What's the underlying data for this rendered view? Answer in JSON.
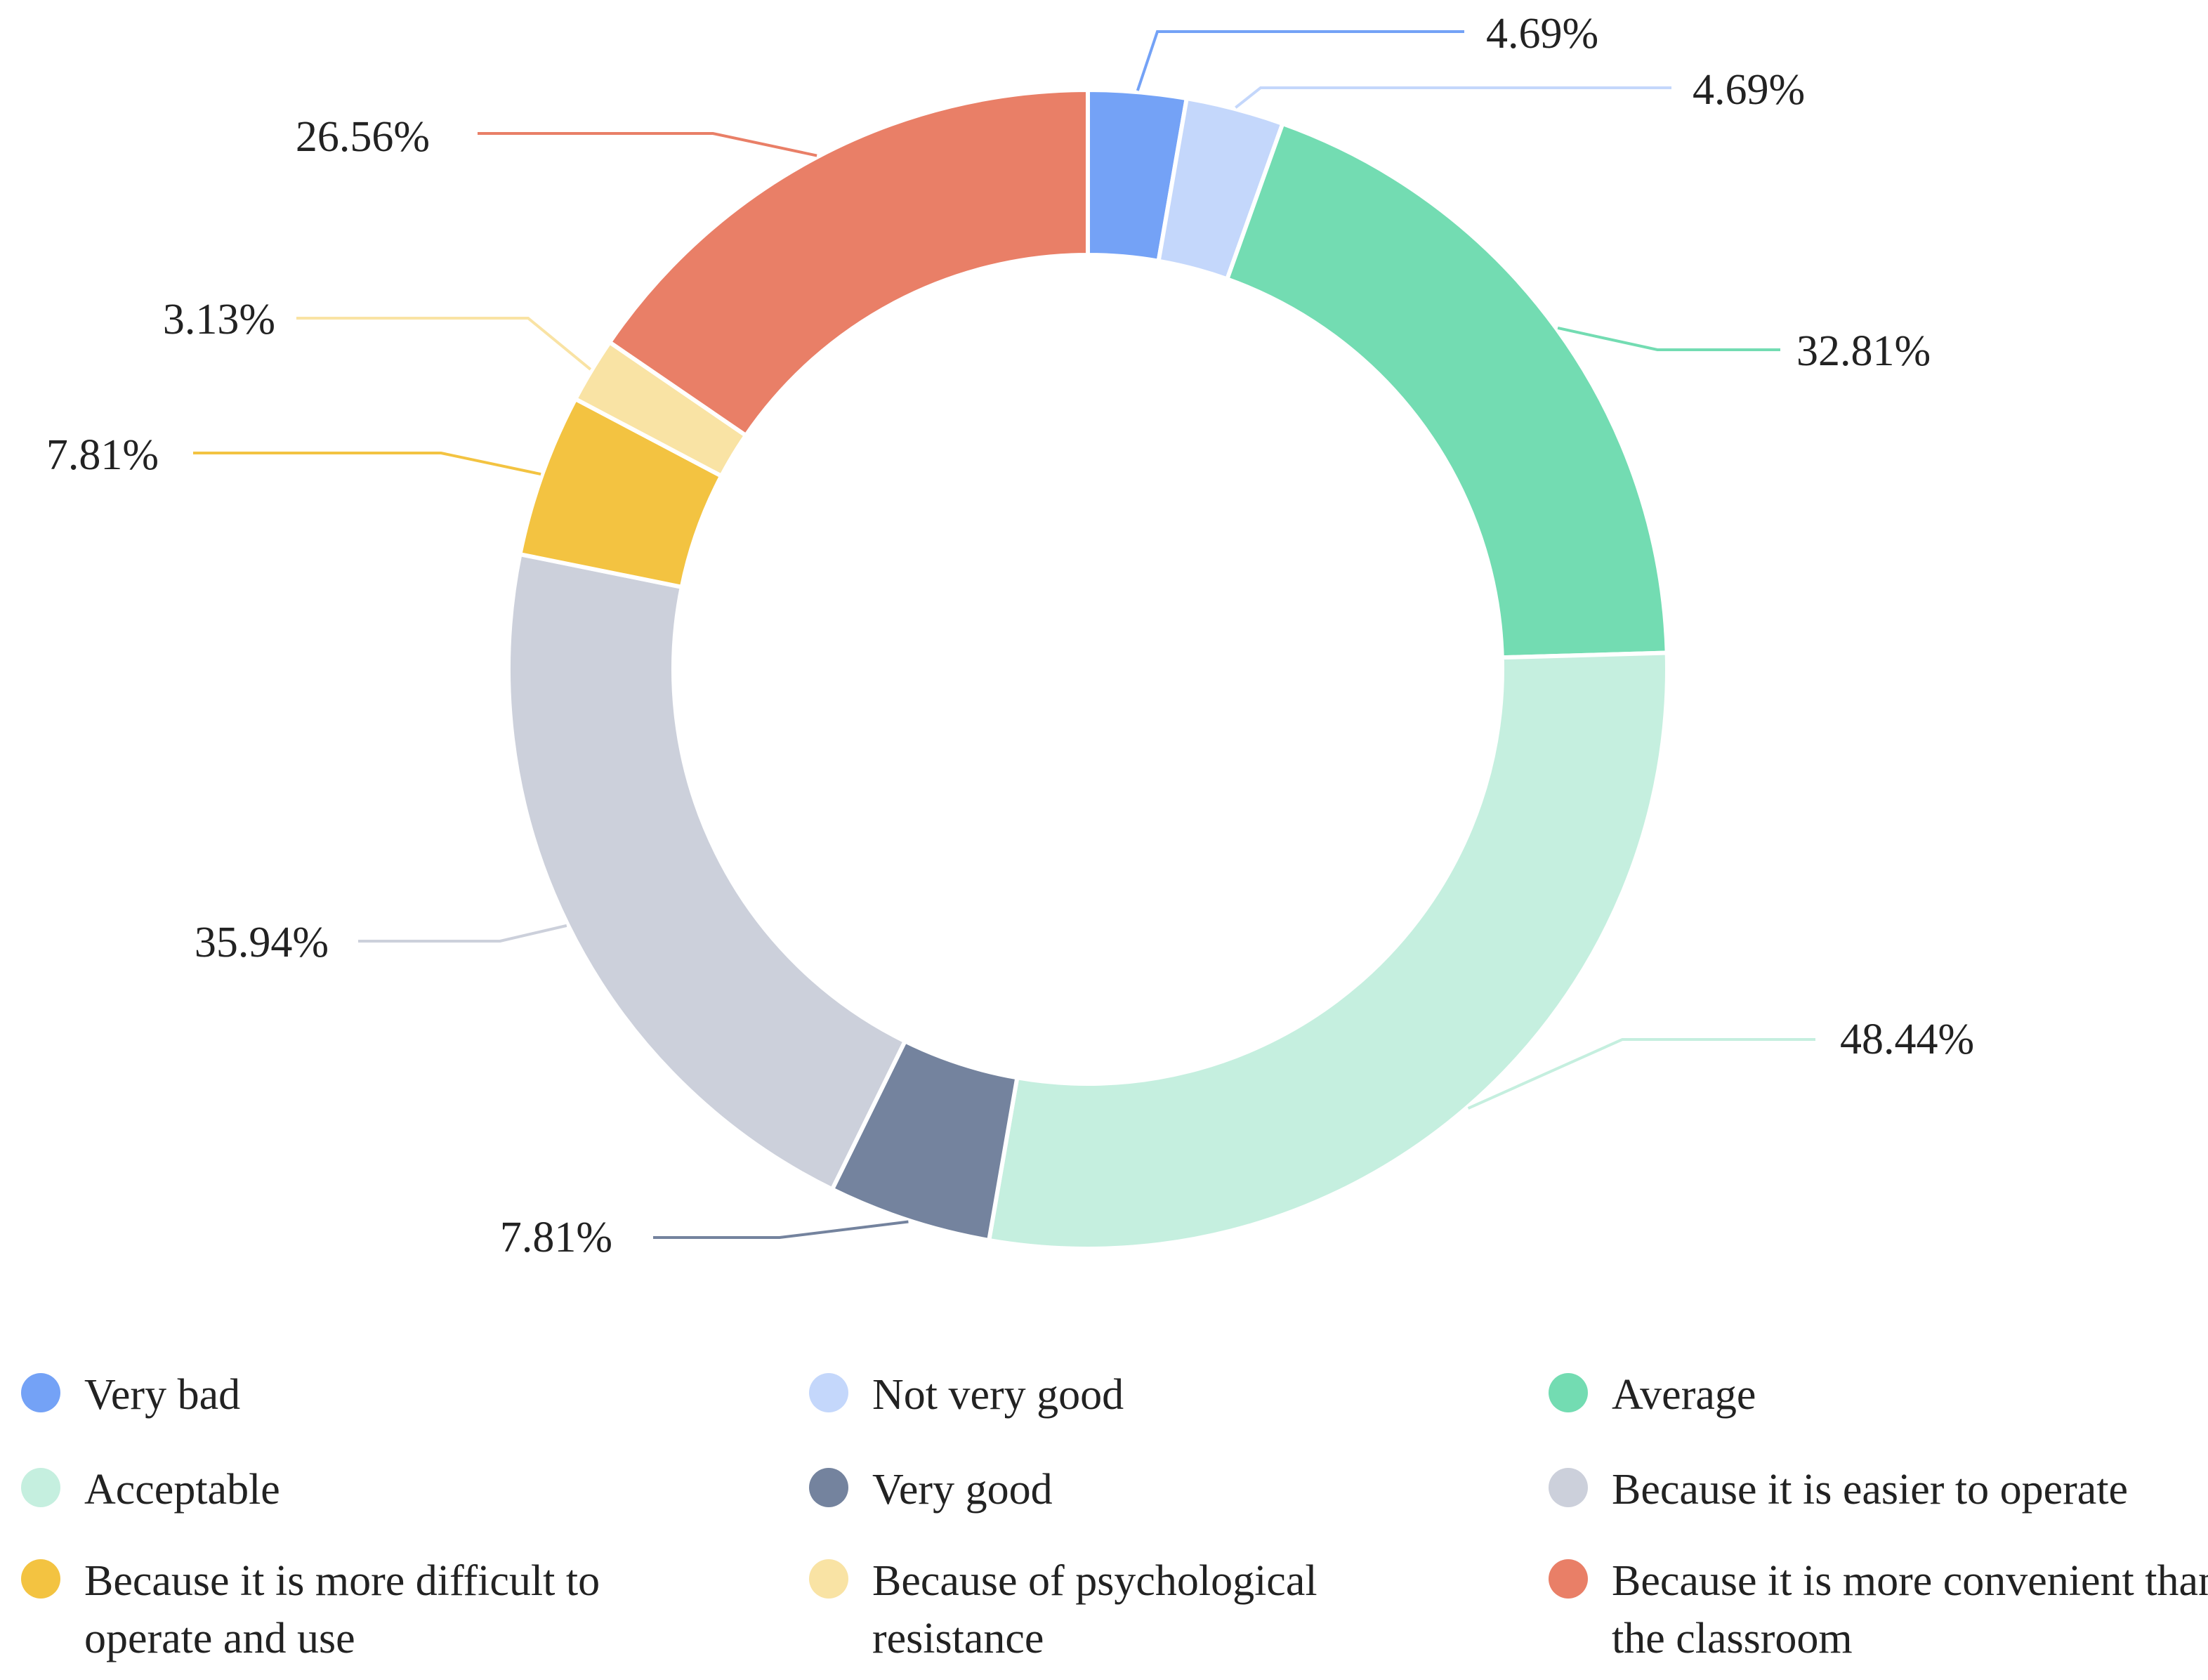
{
  "chart_data": {
    "type": "pie",
    "variant": "donut",
    "title": "",
    "start_angle_deg": 0,
    "slices": [
      {
        "name": "Very bad",
        "label": "4.69%",
        "value": 4.69,
        "color": "#74A2F6"
      },
      {
        "name": "Not very good",
        "label": "4.69%",
        "value": 4.69,
        "color": "#C4D7FB"
      },
      {
        "name": "Average",
        "label": "32.81%",
        "value": 32.81,
        "color": "#73DCB2"
      },
      {
        "name": "Acceptable",
        "label": "48.44%",
        "value": 48.44,
        "color": "#C5EFDF"
      },
      {
        "name": "Very good",
        "label": "7.81%",
        "value": 7.81,
        "color": "#74839E"
      },
      {
        "name": "Because it is easier to operate",
        "label": "35.94%",
        "value": 35.94,
        "color": "#CCD0DB"
      },
      {
        "name": "Because it is more difficult to operate and use",
        "label": "7.81%",
        "value": 7.81,
        "color": "#F3C341"
      },
      {
        "name": "Because of psychological resistance",
        "label": "3.13%",
        "value": 3.13,
        "color": "#F9E3A4"
      },
      {
        "name": "Because it is more convenient than the classroom",
        "label": "26.56%",
        "value": 26.56,
        "color": "#E97F67"
      }
    ],
    "legend_position": "bottom",
    "legend_columns": 3
  }
}
